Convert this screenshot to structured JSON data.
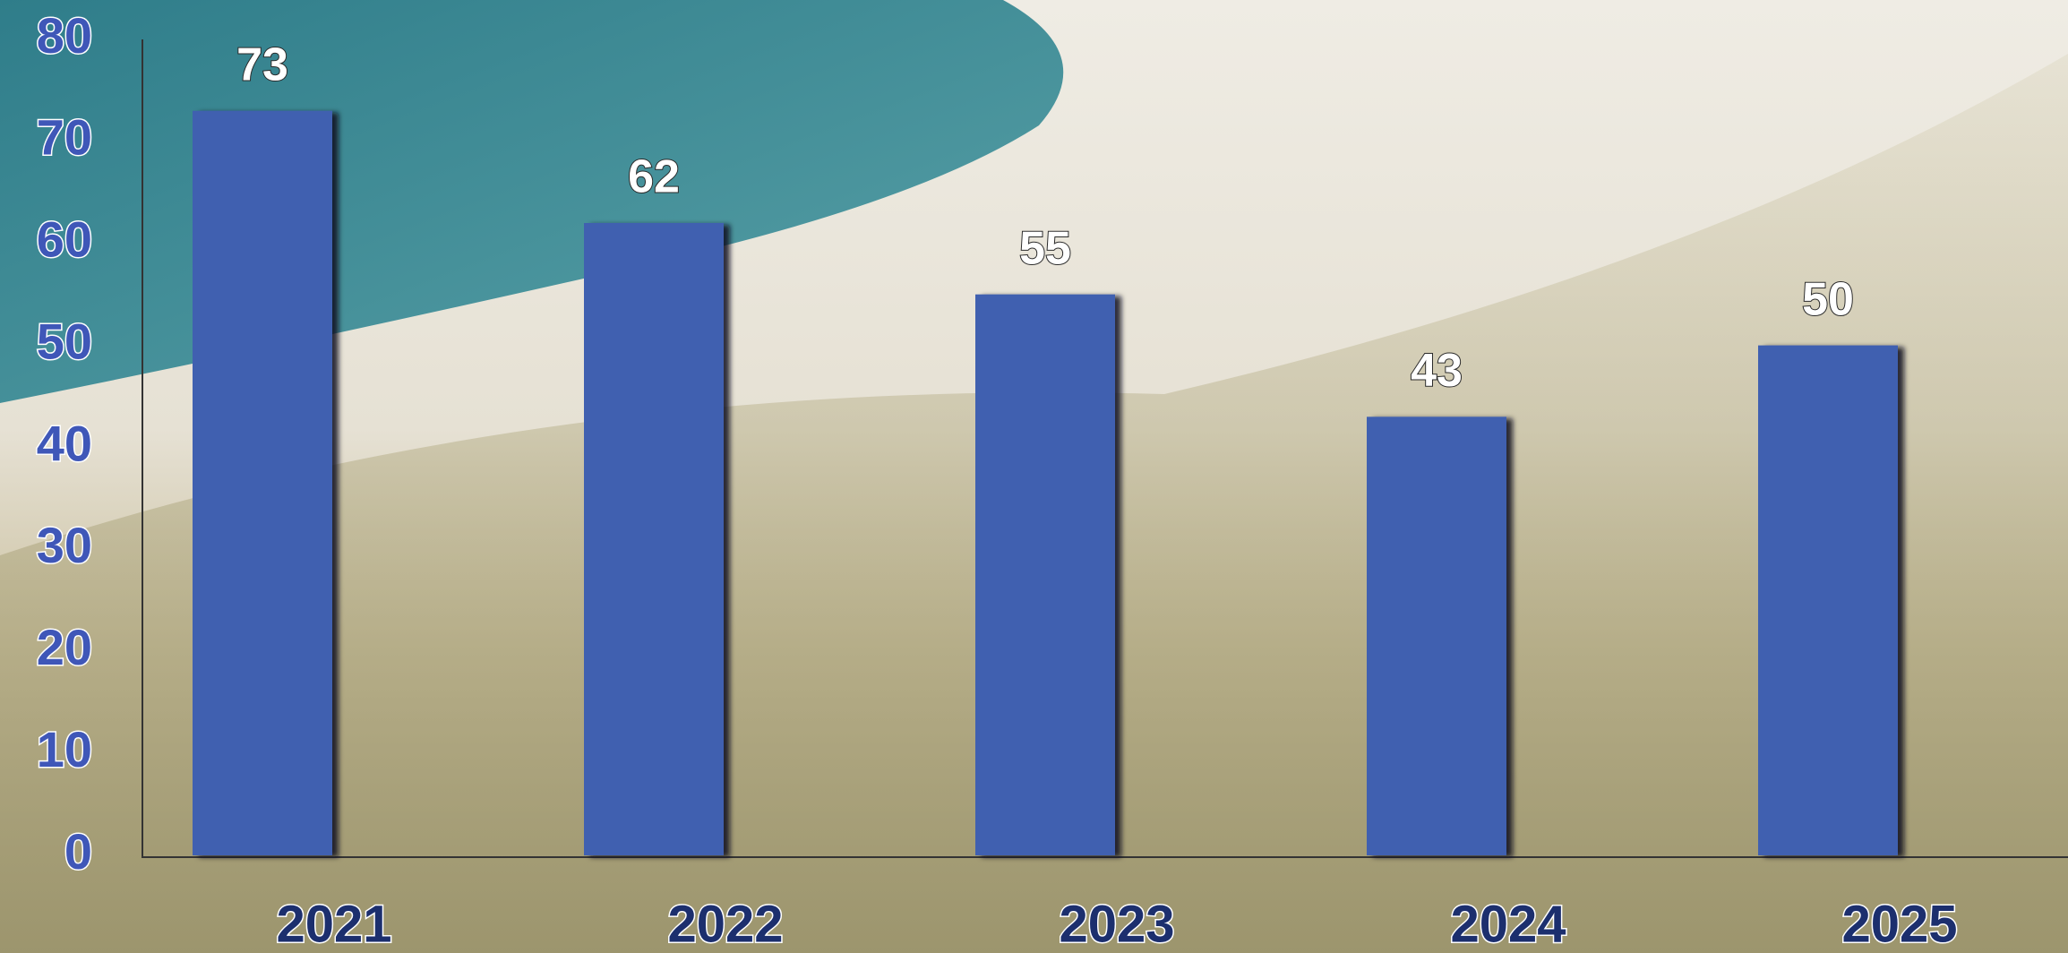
{
  "chart_data": {
    "type": "bar",
    "categories": [
      "2021",
      "2022",
      "2023",
      "2024",
      "2025"
    ],
    "values": [
      73,
      62,
      55,
      43,
      50
    ],
    "color": "#4160b0",
    "ylim": [
      0,
      80
    ],
    "yticks": [
      0,
      10,
      20,
      30,
      40,
      50,
      60,
      70,
      80
    ],
    "grid": false
  }
}
